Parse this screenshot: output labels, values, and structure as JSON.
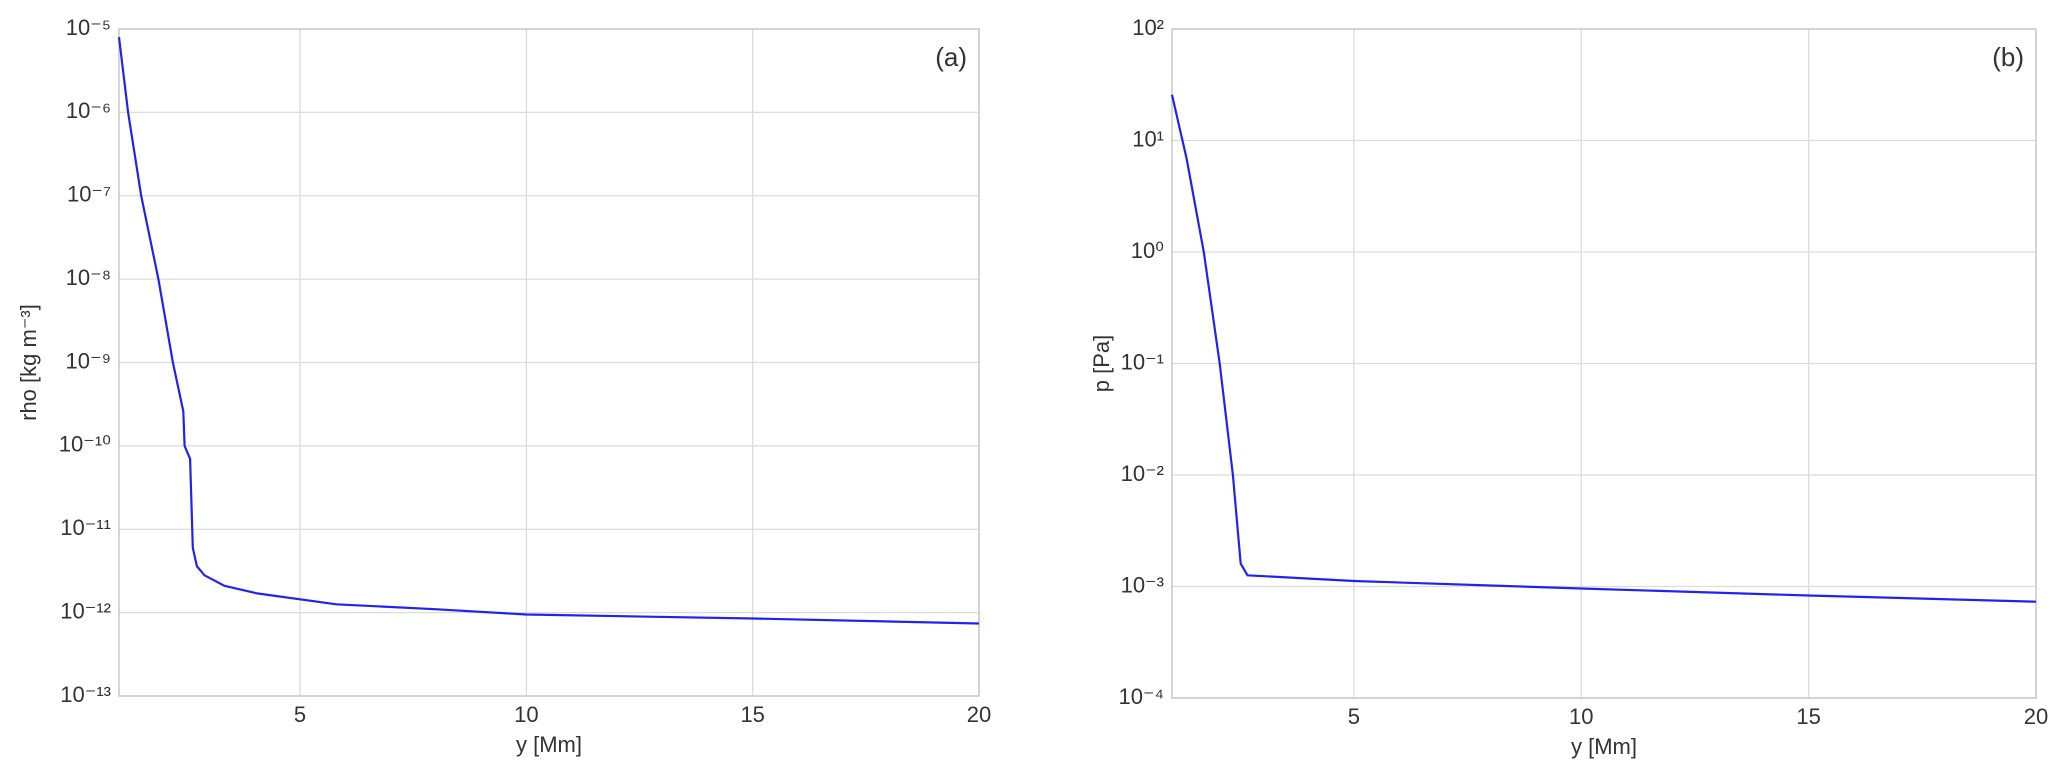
{
  "chart_data": [
    {
      "type": "line",
      "annotation": "(a)",
      "xlabel": "y [Mm]",
      "ylabel": "rho [kg m⁻³]",
      "color": "#2222ee",
      "ylog": true,
      "grid": true,
      "x": [
        1.0,
        1.2,
        1.49,
        1.87,
        2.19,
        2.42,
        2.45,
        2.57,
        2.63,
        2.72,
        2.89,
        3.33,
        4.05,
        5.8,
        7.98,
        10,
        15,
        20
      ],
      "values": [
        8e-06,
        1e-06,
        1e-07,
        1e-08,
        1e-09,
        2.6e-10,
        1e-10,
        7e-11,
        6e-12,
        3.6e-12,
        2.8e-12,
        2.1e-12,
        1.7e-12,
        1.26e-12,
        1.1e-12,
        9.5e-13,
        8.5e-13,
        7.4e-13
      ],
      "xlim": [
        1,
        20
      ],
      "xticks": [
        5,
        10,
        15,
        20
      ],
      "ylim": [
        1e-13,
        1e-05
      ],
      "yticks": [
        {
          "value": 1e-13,
          "label": "10⁻¹³"
        },
        {
          "value": 1e-12,
          "label": "10⁻¹²"
        },
        {
          "value": 1e-11,
          "label": "10⁻¹¹"
        },
        {
          "value": 1e-10,
          "label": "10⁻¹⁰"
        },
        {
          "value": 1e-09,
          "label": "10⁻⁹"
        },
        {
          "value": 1e-08,
          "label": "10⁻⁸"
        },
        {
          "value": 1e-07,
          "label": "10⁻⁷"
        },
        {
          "value": 1e-06,
          "label": "10⁻⁶"
        },
        {
          "value": 1e-05,
          "label": "10⁻⁵"
        }
      ]
    },
    {
      "type": "line",
      "annotation": "(b)",
      "xlabel": "y [Mm]",
      "ylabel": "p [Pa]",
      "color": "#2222ee",
      "ylog": true,
      "grid": true,
      "x": [
        1.0,
        1.32,
        1.7,
        2.05,
        2.34,
        2.51,
        2.66,
        5,
        10,
        15,
        20
      ],
      "values": [
        25.7,
        6.9,
        1.0,
        0.1,
        0.01,
        0.0016,
        0.00126,
        0.00112,
        0.00096,
        0.00083,
        0.00073
      ],
      "xlim": [
        1,
        20
      ],
      "xticks": [
        5,
        10,
        15,
        20
      ],
      "ylim": [
        0.0001,
        100
      ],
      "yticks": [
        {
          "value": 0.0001,
          "label": "10⁻⁴"
        },
        {
          "value": 0.001,
          "label": "10⁻³"
        },
        {
          "value": 0.01,
          "label": "10⁻²"
        },
        {
          "value": 0.1,
          "label": "10⁻¹"
        },
        {
          "value": 1,
          "label": "10⁰"
        },
        {
          "value": 10,
          "label": "10¹"
        },
        {
          "value": 100,
          "label": "10²"
        }
      ]
    }
  ]
}
